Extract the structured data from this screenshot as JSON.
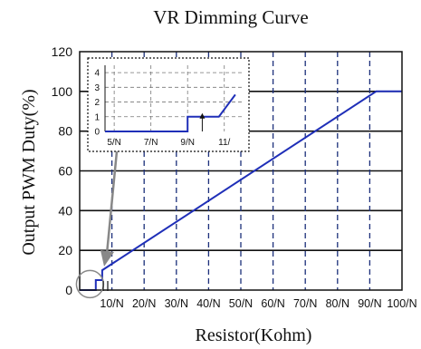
{
  "chart_data": {
    "type": "line",
    "title": "VR Dimming Curve",
    "xlabel": "Resistor(Kohm)",
    "ylabel": "Output PWM Duty(%)",
    "xlim": [
      0,
      100
    ],
    "ylim": [
      0,
      120
    ],
    "x_ticks": [
      10,
      20,
      30,
      40,
      50,
      60,
      70,
      80,
      90,
      100
    ],
    "x_tick_labels": [
      "10/N",
      "20/N",
      "30/N",
      "40/N",
      "50/N",
      "60/N",
      "70/N",
      "80/N",
      "90/N",
      "100/N"
    ],
    "y_ticks": [
      0,
      20,
      40,
      60,
      80,
      100,
      120
    ],
    "y_tick_labels": [
      "0",
      "20",
      "40",
      "60",
      "80",
      "100",
      "120"
    ],
    "grid": {
      "x": "dashed",
      "y": "solid"
    },
    "series_color": "#1f2fb8",
    "series": [
      {
        "x": [
          0,
          5,
          5,
          7,
          7,
          92,
          100
        ],
        "y": [
          0,
          0,
          5,
          5,
          10,
          100,
          100
        ]
      }
    ],
    "inset": {
      "x_tick_labels": [
        "5/N",
        "7/N",
        "9/N",
        "11/"
      ],
      "x_ticks": [
        5,
        7,
        9,
        11
      ],
      "xlim": [
        4.5,
        12
      ],
      "y_ticks": [
        0,
        1,
        2,
        3,
        4
      ],
      "y_tick_labels": [
        "0",
        "1",
        "2",
        "3",
        "4"
      ],
      "ylim": [
        0,
        4.5
      ],
      "series": [
        {
          "x": [
            4.5,
            9,
            9,
            10.7,
            11.6
          ],
          "y": [
            0,
            0,
            1,
            1,
            2.5
          ]
        }
      ]
    },
    "annotation_color": "#888888"
  }
}
